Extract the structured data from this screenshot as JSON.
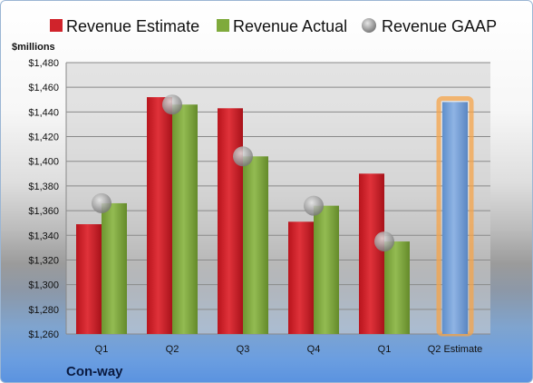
{
  "company": "Con-way",
  "colors": {
    "estimate": "#d0232b",
    "actual": "#7faa3c",
    "gaap": "#aaaaaa",
    "forecast": "#7aa3d8",
    "forecast_glow": "#f5a44a",
    "plot_bg": "#cfcfcf"
  },
  "chart_data": {
    "type": "bar",
    "title": "",
    "ylabel": "$millions",
    "xlabel": "",
    "ylim": [
      1260,
      1480
    ],
    "yticks": [
      1260,
      1280,
      1300,
      1320,
      1340,
      1360,
      1380,
      1400,
      1420,
      1440,
      1460,
      1480
    ],
    "ytick_labels": [
      "$1,260",
      "$1,280",
      "$1,300",
      "$1,320",
      "$1,340",
      "$1,360",
      "$1,380",
      "$1,400",
      "$1,420",
      "$1,440",
      "$1,460",
      "$1,480"
    ],
    "categories": [
      "Q1",
      "Q2",
      "Q3",
      "Q4",
      "Q1",
      "Q2 Estimate"
    ],
    "grid": true,
    "legend_position": "top",
    "series": [
      {
        "name": "Revenue Estimate",
        "kind": "bar",
        "values": [
          1349,
          1452,
          1443,
          1351,
          1390,
          null
        ]
      },
      {
        "name": "Revenue Actual",
        "kind": "bar",
        "values": [
          1366,
          1446,
          1404,
          1364,
          1335,
          null
        ]
      },
      {
        "name": "Revenue GAAP",
        "kind": "marker",
        "values": [
          1366,
          1446,
          1404,
          1364,
          1335,
          null
        ]
      },
      {
        "name": "",
        "kind": "forecast-bar",
        "values": [
          null,
          null,
          null,
          null,
          null,
          1448
        ]
      }
    ]
  }
}
